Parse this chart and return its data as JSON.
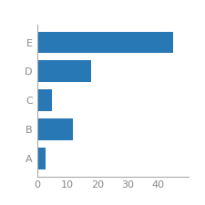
{
  "categories": [
    "A",
    "B",
    "C",
    "D",
    "E"
  ],
  "values": [
    3,
    12,
    5,
    18,
    45
  ],
  "bar_color": "#2878b5",
  "xlim": [
    0,
    50
  ],
  "xticks": [
    0,
    10,
    20,
    30,
    40
  ],
  "background_color": "#ffffff",
  "tick_color": "#888888",
  "spine_color": "#aaaaaa",
  "bar_height": 0.75,
  "label_fontsize": 8
}
